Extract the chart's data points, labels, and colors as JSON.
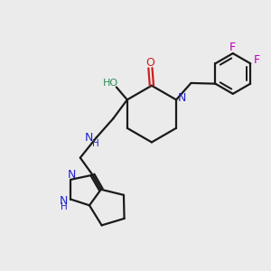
{
  "bg_color": "#ebebeb",
  "bond_color": "#1a1a1a",
  "N_color": "#2020cc",
  "O_color": "#cc2020",
  "F_color": "#bb00bb",
  "OH_color": "#2e8b57",
  "lw": 1.6,
  "figsize": [
    3.0,
    3.0
  ],
  "dpi": 100,
  "xlim": [
    0,
    10
  ],
  "ylim": [
    0,
    10
  ]
}
